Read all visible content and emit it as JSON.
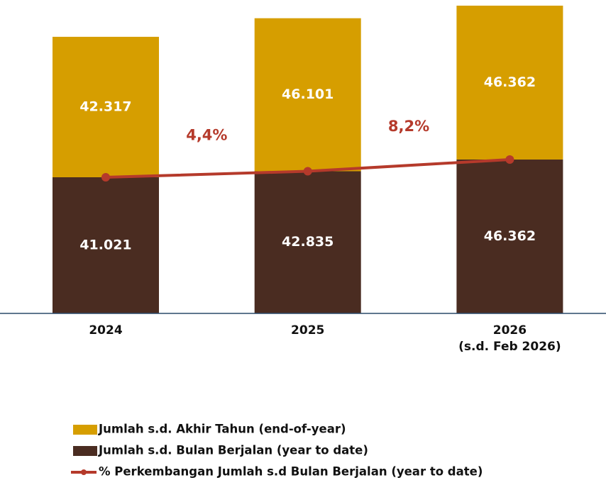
{
  "chart_data": {
    "type": "stacked-bar-line",
    "categories": [
      "2024",
      "2025",
      "2026"
    ],
    "category_notes": [
      null,
      null,
      "(s.d. Feb 2026)"
    ],
    "series": [
      {
        "name": "Jumlah s.d. Bulan Berjalan (year to date)",
        "color": "#4a2c21",
        "values": [
          41021,
          42835,
          46362
        ],
        "value_labels": [
          "41.021",
          "42.835",
          "46.362"
        ]
      },
      {
        "name": "Jumlah s.d. Akhir Tahun (end-of-year)",
        "color": "#d69e00",
        "values": [
          42317,
          46101,
          46362
        ],
        "value_labels": [
          "42.317",
          "46.101",
          "46.362"
        ]
      },
      {
        "name": "% Perkembangan Jumlah s.d Bulan Berjalan (year to date)",
        "type": "line",
        "color": "#b53a2b",
        "values": [
          41021,
          42835,
          46362
        ]
      }
    ],
    "growth": {
      "values": [
        4.4,
        8.2
      ],
      "value_labels": [
        "4,4%",
        "8,2%"
      ],
      "color": "#b53a2b"
    },
    "ylim": [
      0,
      94000
    ]
  }
}
